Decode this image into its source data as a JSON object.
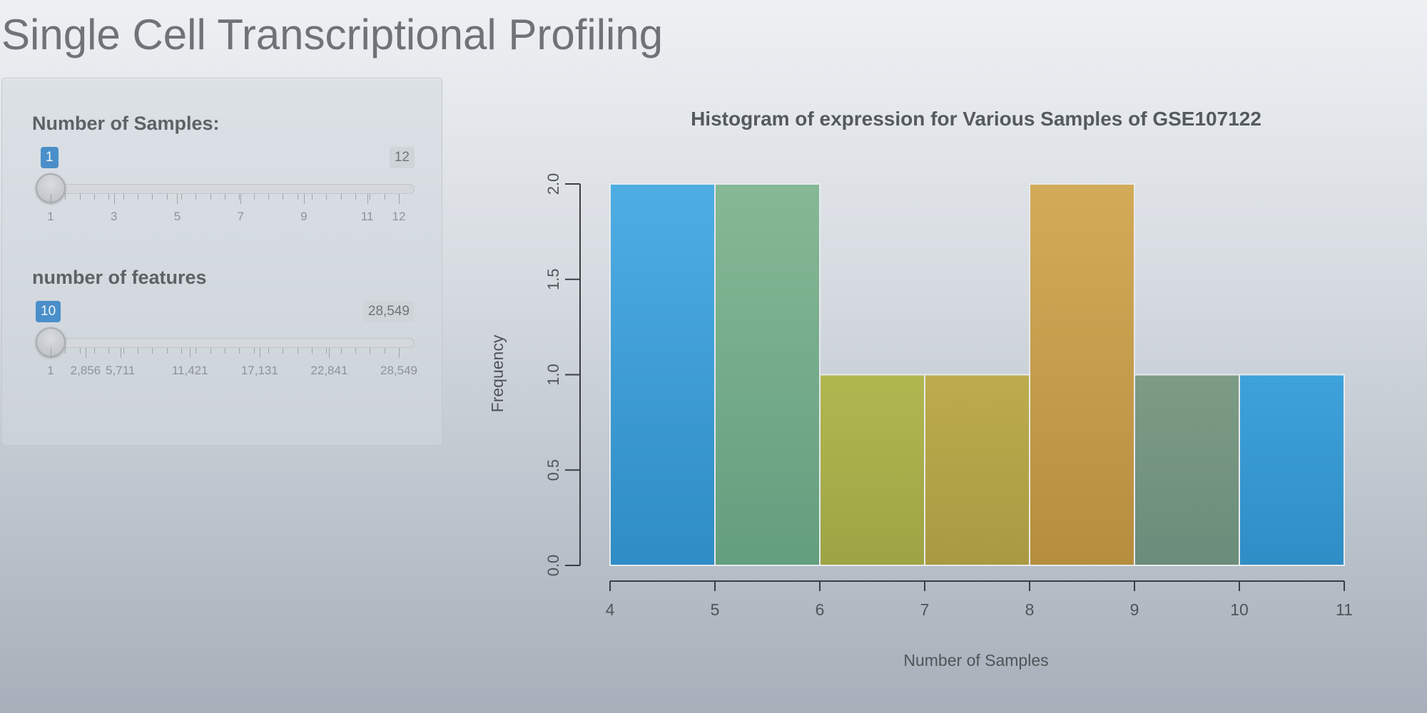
{
  "app": {
    "title": "Single Cell Transcriptional Profiling"
  },
  "sidebar": {
    "samples_slider": {
      "label": "Number of Samples:",
      "value": 1,
      "value_label": "1",
      "min": 1,
      "max": 12,
      "max_label": "12",
      "tick_labels": [
        {
          "value": 1,
          "text": "1"
        },
        {
          "value": 3,
          "text": "3"
        },
        {
          "value": 5,
          "text": "5"
        },
        {
          "value": 7,
          "text": "7"
        },
        {
          "value": 9,
          "text": "9"
        },
        {
          "value": 11,
          "text": "11"
        },
        {
          "value": 12,
          "text": "12"
        }
      ],
      "handle_icon": "circle-handle-icon"
    },
    "features_slider": {
      "label": "number of features",
      "value": 10,
      "value_label": "10",
      "min": 1,
      "max": 28549,
      "max_label": "28,549",
      "tick_labels": [
        {
          "value": 1,
          "text": "1"
        },
        {
          "value": 2856,
          "text": "2,856"
        },
        {
          "value": 5711,
          "text": "5,711"
        },
        {
          "value": 11421,
          "text": "11,421"
        },
        {
          "value": 17131,
          "text": "17,131"
        },
        {
          "value": 22841,
          "text": "22,841"
        },
        {
          "value": 28549,
          "text": "28,549"
        }
      ],
      "handle_icon": "circle-handle-icon"
    }
  },
  "colors": {
    "accent": "#4a8fc9",
    "title_text": "#6f7377"
  },
  "chart_data": {
    "type": "bar",
    "title": "Histogram of expression for Various Samples of GSE107122",
    "xlabel": "Number of Samples",
    "ylabel": "Frequency",
    "bins": [
      {
        "start": 4,
        "end": 5,
        "value": 2,
        "color_top": "#4eaee3",
        "color_bottom": "#2f8cc5"
      },
      {
        "start": 5,
        "end": 6,
        "value": 2,
        "color_top": "#86b895",
        "color_bottom": "#639e7e"
      },
      {
        "start": 6,
        "end": 7,
        "value": 1,
        "color_top": "#b1b74f",
        "color_bottom": "#9ea444"
      },
      {
        "start": 7,
        "end": 8,
        "value": 1,
        "color_top": "#bcac4d",
        "color_bottom": "#a99942"
      },
      {
        "start": 8,
        "end": 9,
        "value": 2,
        "color_top": "#d3ab58",
        "color_bottom": "#b68d3f"
      },
      {
        "start": 9,
        "end": 10,
        "value": 1,
        "color_top": "#7d9c85",
        "color_bottom": "#6a8c7a"
      },
      {
        "start": 10,
        "end": 11,
        "value": 1,
        "color_top": "#3ea2da",
        "color_bottom": "#2f8dc6"
      }
    ],
    "xlim": [
      4,
      11
    ],
    "ylim": [
      0,
      2
    ],
    "x_ticks": [
      4,
      5,
      6,
      7,
      8,
      9,
      10,
      11
    ],
    "x_tick_labels": [
      "4",
      "5",
      "6",
      "7",
      "8",
      "9",
      "10",
      "11"
    ],
    "y_ticks": [
      0,
      0.5,
      1,
      1.5,
      2
    ],
    "y_tick_labels": [
      "0.0",
      "0.5",
      "1.0",
      "1.5",
      "2.0"
    ],
    "grid": false,
    "legend": "none"
  }
}
